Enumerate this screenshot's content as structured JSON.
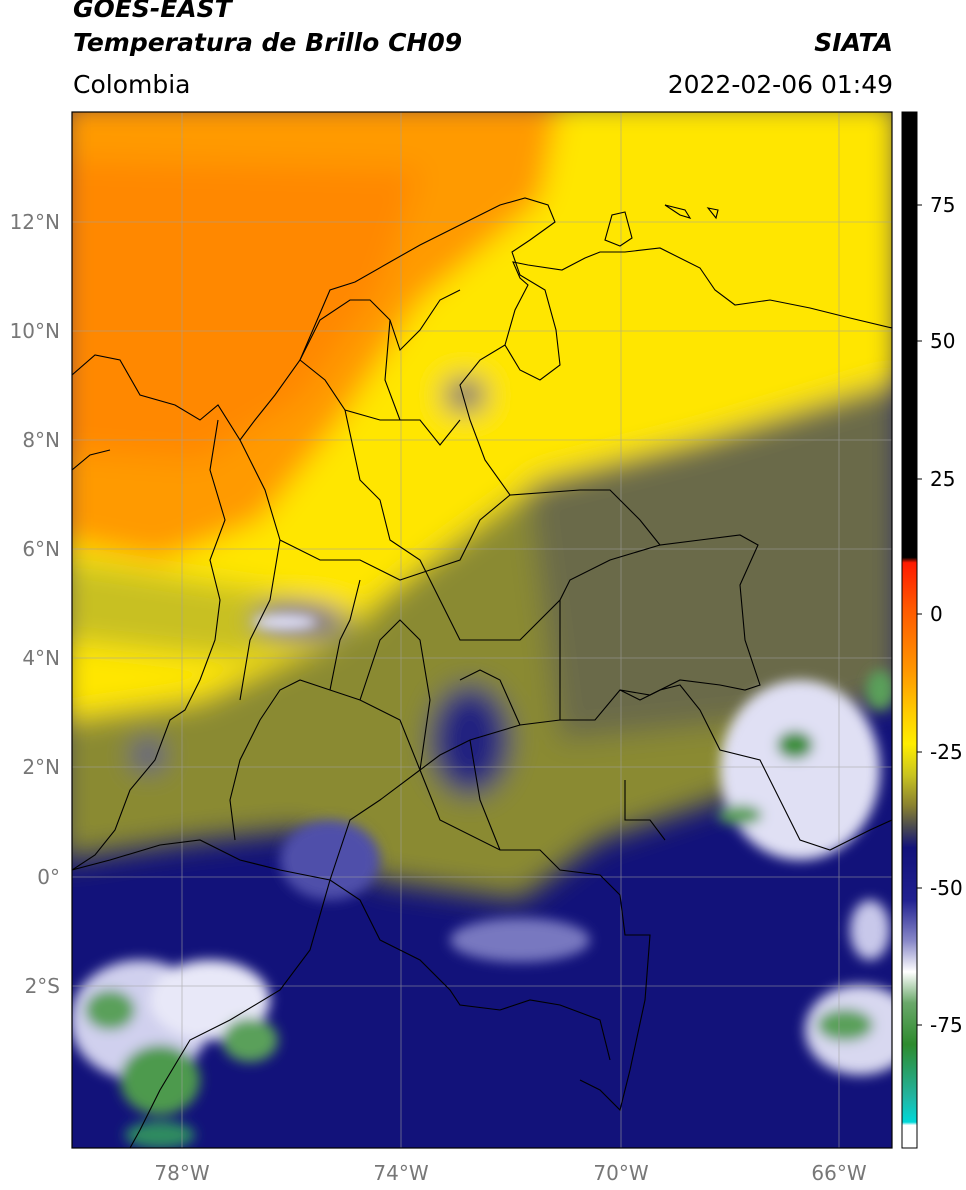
{
  "header": {
    "satellite": "GOES-EAST",
    "product": "Temperatura de Brillo CH09",
    "organization": "SIATA",
    "region": "Colombia",
    "datetime": "2022-02-06 01:49"
  },
  "map": {
    "lon_range": [
      -80,
      -65
    ],
    "lat_range": [
      -5,
      14
    ],
    "lat_ticks": [
      "12°N",
      "10°N",
      "8°N",
      "6°N",
      "4°N",
      "2°N",
      "0°",
      "2°S"
    ],
    "lon_ticks": [
      "78°W",
      "74°W",
      "70°W",
      "66°W"
    ]
  },
  "colorbar": {
    "range": [
      -95,
      90
    ],
    "ticks": [
      "75",
      "50",
      "25",
      "0",
      "-25",
      "-50",
      "-75"
    ],
    "colors": {
      "black": "#000000",
      "red": "#ff1a00",
      "orange": "#ff8c00",
      "yellow": "#ffee00",
      "olive": "#8a8a30",
      "navy": "#12127a",
      "white": "#ffffff",
      "green": "#2e8b2e",
      "cyan": "#00d8d8"
    }
  }
}
